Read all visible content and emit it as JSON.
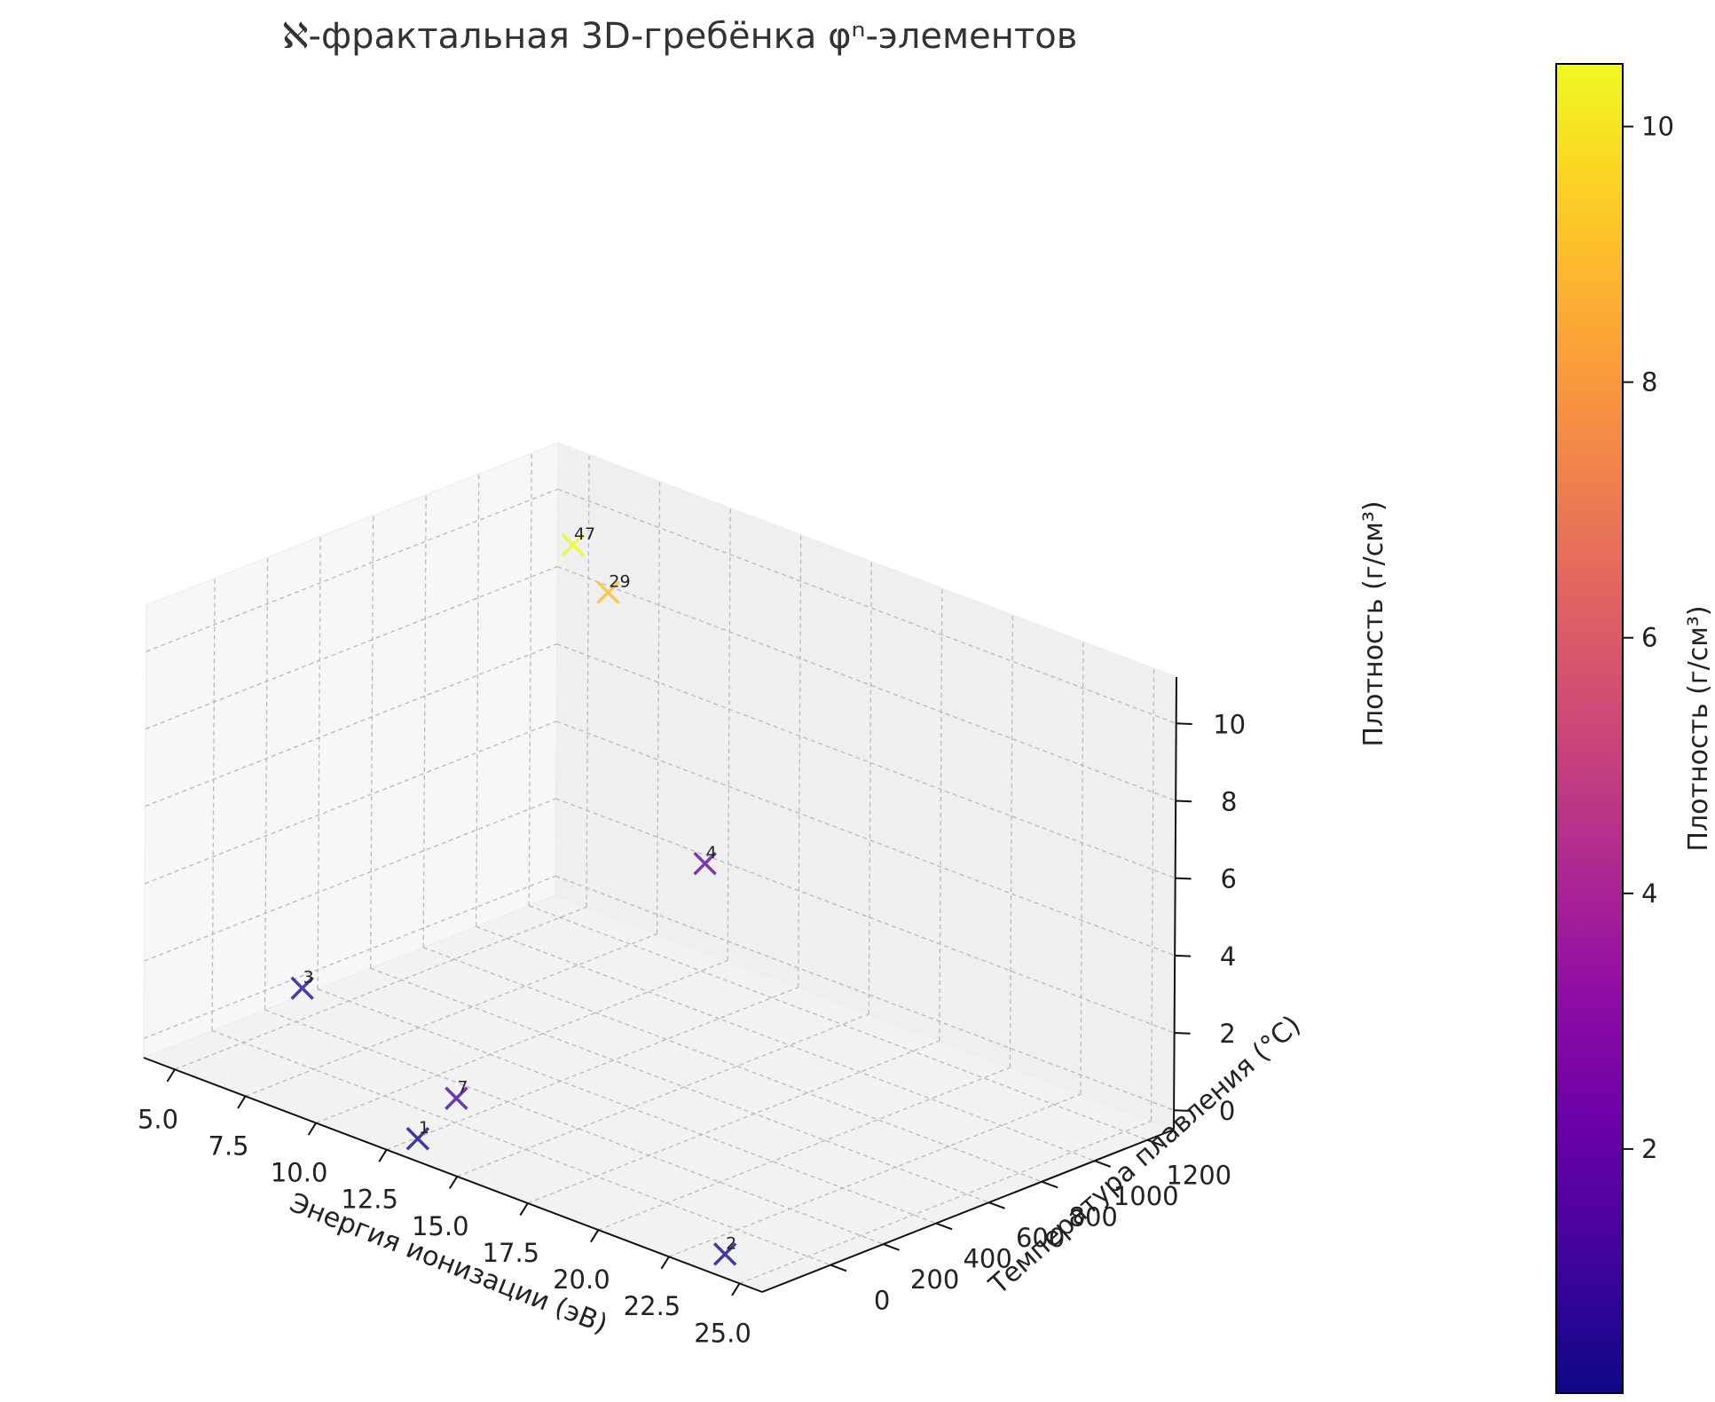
{
  "chart_data": {
    "type": "scatter3d",
    "title": "ℵ-фрактальная 3D-гребёнка φⁿ-элементов",
    "xlabel": "Энергия ионизации (эВ)",
    "ylabel": "Температура плавления (°C)",
    "zlabel": "Плотность (г/см³)",
    "colorbar_label": "Плотность (г/см³)",
    "xlim": [
      3.9,
      25.8
    ],
    "ylim": [
      -259,
      1300
    ],
    "zlim": [
      -0.5,
      11.2
    ],
    "xticks": [
      "5.0",
      "7.5",
      "10.0",
      "12.5",
      "15.0",
      "17.5",
      "20.0",
      "22.5",
      "25.0"
    ],
    "yticks": [
      "0",
      "200",
      "400",
      "600",
      "800",
      "1000",
      "1200"
    ],
    "zticks": [
      "0",
      "2",
      "4",
      "6",
      "8",
      "10"
    ],
    "colorbar_ticks": [
      "2",
      "4",
      "6",
      "8",
      "10"
    ],
    "colorbar_range": [
      0.09,
      10.49
    ],
    "colormap": "plasma",
    "marker": "x",
    "grid": true,
    "points": [
      {
        "label": "1",
        "x": 13.6,
        "y": -259,
        "z": 0.09
      },
      {
        "label": "2",
        "x": 24.6,
        "y": -272,
        "z": 0.18
      },
      {
        "label": "3",
        "x": 5.4,
        "y": 180,
        "z": 0.53
      },
      {
        "label": "4",
        "x": 9.3,
        "y": 1287,
        "z": 1.85
      },
      {
        "label": "7",
        "x": 14.5,
        "y": -210,
        "z": 1.25
      },
      {
        "label": "29",
        "x": 7.7,
        "y": 1085,
        "z": 8.96
      },
      {
        "label": "47",
        "x": 7.6,
        "y": 962,
        "z": 10.49
      }
    ]
  }
}
